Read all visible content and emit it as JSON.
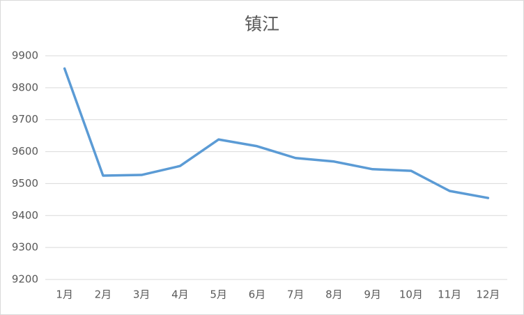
{
  "chart_data": {
    "type": "line",
    "title": "镇江",
    "categories": [
      "1月",
      "2月",
      "3月",
      "4月",
      "5月",
      "6月",
      "7月",
      "8月",
      "9月",
      "10月",
      "11月",
      "12月"
    ],
    "values": [
      9860,
      9525,
      9527,
      9555,
      9638,
      9617,
      9580,
      9569,
      9545,
      9540,
      9477,
      9455
    ],
    "color": "#5b9bd5",
    "ylim": [
      9200,
      9900
    ],
    "yticks": [
      9200,
      9300,
      9400,
      9500,
      9600,
      9700,
      9800,
      9900
    ],
    "grid": true
  }
}
